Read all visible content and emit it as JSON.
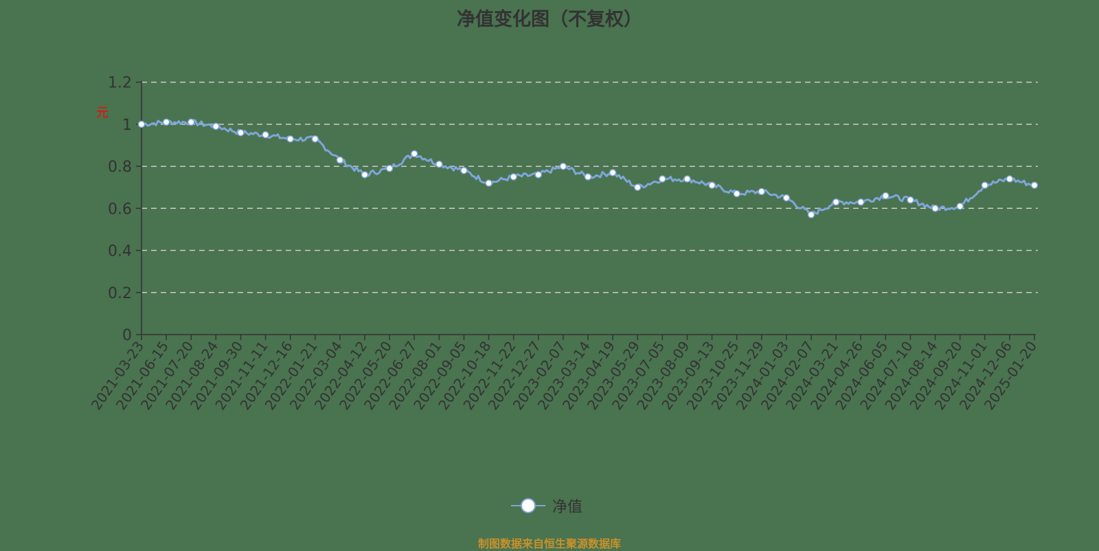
{
  "title": "净值变化图（不复权）",
  "unit_label": "元",
  "legend": {
    "label": "净值"
  },
  "source": "制图数据来自恒生聚源数据库",
  "colors": {
    "line": "#7fa6d9",
    "marker_fill": "#ffffff",
    "grid": "#cccccc",
    "axis": "#333333",
    "text": "#333333",
    "source": "#c8922a"
  },
  "chart_data": {
    "type": "line",
    "title": "净值变化图（不复权）",
    "xlabel": "",
    "ylabel": "元",
    "ylim": [
      0,
      1.2
    ],
    "yticks": [
      0,
      0.2,
      0.4,
      0.6,
      0.8,
      1,
      1.2
    ],
    "grid": true,
    "legend_position": "bottom",
    "categories": [
      "2021-03-23",
      "2021-06-15",
      "2021-07-20",
      "2021-08-24",
      "2021-09-30",
      "2021-11-11",
      "2021-12-16",
      "2022-01-21",
      "2022-03-04",
      "2022-04-12",
      "2022-05-20",
      "2022-06-27",
      "2022-08-01",
      "2022-09-05",
      "2022-10-18",
      "2022-11-22",
      "2022-12-27",
      "2023-02-07",
      "2023-03-14",
      "2023-04-19",
      "2023-05-29",
      "2023-07-05",
      "2023-08-09",
      "2023-09-13",
      "2023-10-25",
      "2023-11-29",
      "2024-01-03",
      "2024-02-07",
      "2024-03-21",
      "2024-04-26",
      "2024-06-05",
      "2024-07-10",
      "2024-08-14",
      "2024-09-20",
      "2024-11-01",
      "2024-12-06",
      "2025-01-20"
    ],
    "series": [
      {
        "name": "净值",
        "values": [
          1.0,
          1.01,
          1.01,
          0.99,
          0.96,
          0.95,
          0.93,
          0.93,
          0.83,
          0.76,
          0.79,
          0.86,
          0.81,
          0.78,
          0.72,
          0.75,
          0.76,
          0.8,
          0.75,
          0.77,
          0.7,
          0.74,
          0.74,
          0.71,
          0.67,
          0.68,
          0.65,
          0.57,
          0.63,
          0.63,
          0.66,
          0.64,
          0.6,
          0.61,
          0.71,
          0.74,
          0.71
        ]
      }
    ]
  }
}
